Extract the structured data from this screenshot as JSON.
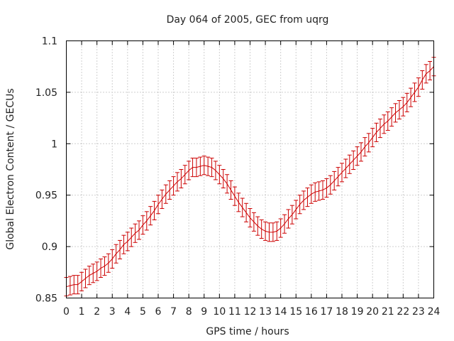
{
  "chart_data": {
    "type": "line",
    "title": "Day 064 of 2005, GEC from uqrg",
    "xlabel": "GPS time / hours",
    "ylabel": "Global Electron Content / GECUs",
    "xlim": [
      0,
      24
    ],
    "ylim": [
      0.85,
      1.1
    ],
    "x_ticks": [
      "0",
      "1",
      "2",
      "3",
      "4",
      "5",
      "6",
      "7",
      "8",
      "9",
      "10",
      "11",
      "12",
      "13",
      "14",
      "15",
      "16",
      "17",
      "18",
      "19",
      "20",
      "21",
      "22",
      "23",
      "24"
    ],
    "y_ticks": [
      "0.85",
      "0.9",
      "0.95",
      "1",
      "1.05",
      "1.1"
    ],
    "grid": true,
    "error_bar_halfwidth": 0.009,
    "series": [
      {
        "color": "#cc0000",
        "x": [
          0,
          0.25,
          0.5,
          0.75,
          1,
          1.25,
          1.5,
          1.75,
          2,
          2.25,
          2.5,
          2.75,
          3,
          3.25,
          3.5,
          3.75,
          4,
          4.25,
          4.5,
          4.75,
          5,
          5.25,
          5.5,
          5.75,
          6,
          6.25,
          6.5,
          6.75,
          7,
          7.25,
          7.5,
          7.75,
          8,
          8.25,
          8.5,
          8.75,
          9,
          9.25,
          9.5,
          9.75,
          10,
          10.25,
          10.5,
          10.75,
          11,
          11.25,
          11.5,
          11.75,
          12,
          12.25,
          12.5,
          12.75,
          13,
          13.25,
          13.5,
          13.75,
          14,
          14.25,
          14.5,
          14.75,
          15,
          15.25,
          15.5,
          15.75,
          16,
          16.25,
          16.5,
          16.75,
          17,
          17.25,
          17.5,
          17.75,
          18,
          18.25,
          18.5,
          18.75,
          19,
          19.25,
          19.5,
          19.75,
          20,
          20.25,
          20.5,
          20.75,
          21,
          21.25,
          21.5,
          21.75,
          22,
          22.25,
          22.5,
          22.75,
          23,
          23.25,
          23.5,
          23.75,
          24
        ],
        "y": [
          0.861,
          0.862,
          0.863,
          0.863,
          0.866,
          0.869,
          0.872,
          0.874,
          0.876,
          0.879,
          0.881,
          0.884,
          0.888,
          0.893,
          0.897,
          0.902,
          0.905,
          0.909,
          0.913,
          0.916,
          0.921,
          0.925,
          0.93,
          0.935,
          0.941,
          0.946,
          0.951,
          0.955,
          0.959,
          0.963,
          0.966,
          0.97,
          0.974,
          0.977,
          0.977,
          0.978,
          0.979,
          0.978,
          0.977,
          0.974,
          0.97,
          0.966,
          0.961,
          0.955,
          0.949,
          0.943,
          0.938,
          0.933,
          0.928,
          0.924,
          0.92,
          0.917,
          0.915,
          0.914,
          0.914,
          0.915,
          0.918,
          0.922,
          0.927,
          0.931,
          0.936,
          0.941,
          0.945,
          0.948,
          0.951,
          0.953,
          0.954,
          0.955,
          0.957,
          0.96,
          0.964,
          0.968,
          0.972,
          0.976,
          0.98,
          0.984,
          0.988,
          0.992,
          0.997,
          1.001,
          1.006,
          1.011,
          1.015,
          1.019,
          1.022,
          1.026,
          1.03,
          1.033,
          1.036,
          1.04,
          1.045,
          1.05,
          1.055,
          1.062,
          1.068,
          1.071,
          1.075
        ]
      }
    ]
  }
}
